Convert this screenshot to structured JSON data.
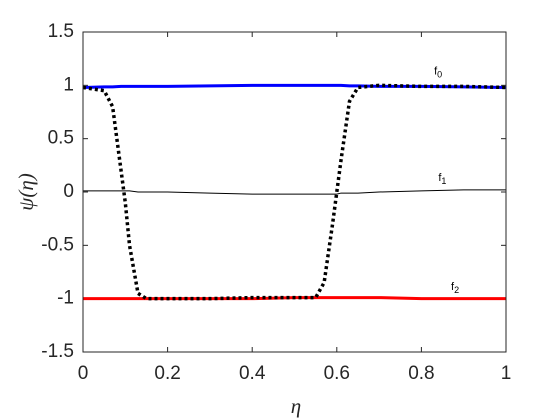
{
  "chart_data": {
    "type": "line",
    "x_label": "η",
    "y_label": "ψ(η)",
    "x": [
      0,
      0.05,
      0.07,
      0.09,
      0.1,
      0.11,
      0.13,
      0.15,
      0.2,
      0.3,
      0.4,
      0.5,
      0.55,
      0.57,
      0.59,
      0.6,
      0.61,
      0.63,
      0.65,
      0.7,
      0.8,
      0.9,
      1
    ],
    "series": [
      {
        "color": "#0000ff",
        "width": 3,
        "dash": false,
        "values": [
          0.98,
          0.985,
          0.985,
          0.99,
          0.99,
          0.99,
          0.99,
          0.99,
          0.99,
          0.995,
          1,
          1,
          1,
          1,
          1,
          1,
          1,
          0.995,
          0.995,
          0.99,
          0.99,
          0.985,
          0.98
        ]
      },
      {
        "color": "#000000",
        "width": 1,
        "dash": false,
        "values": [
          0.01,
          0.01,
          0.01,
          0.01,
          0.01,
          0.01,
          0,
          0,
          0,
          -0.01,
          -0.02,
          -0.02,
          -0.02,
          -0.02,
          -0.02,
          -0.02,
          -0.01,
          -0.01,
          -0.01,
          0,
          0.01,
          0.02,
          0.02
        ]
      },
      {
        "color": "#ff0000",
        "width": 3,
        "dash": false,
        "values": [
          -1,
          -1,
          -1,
          -1,
          -1,
          -1,
          -1,
          -1,
          -1,
          -1,
          -1,
          -0.99,
          -0.99,
          -0.99,
          -0.99,
          -0.99,
          -0.99,
          -0.99,
          -0.99,
          -0.99,
          -1,
          -1,
          -1
        ]
      },
      {
        "color": "#000000",
        "width": 3.5,
        "dash": true,
        "values": [
          0.98,
          0.95,
          0.8,
          0.2,
          -0.1,
          -0.5,
          -0.95,
          -1,
          -1,
          -1,
          -0.99,
          -0.99,
          -0.99,
          -0.85,
          -0.3,
          0,
          0.3,
          0.85,
          0.98,
          1,
          0.99,
          0.99,
          0.98
        ]
      }
    ],
    "annotations": [
      {
        "text": "f",
        "sub": "0",
        "x": 0.83,
        "y": 1.13
      },
      {
        "text": "f",
        "sub": "1",
        "x": 0.84,
        "y": 0.13
      },
      {
        "text": "f",
        "sub": "2",
        "x": 0.87,
        "y": -0.89
      }
    ],
    "xlim": [
      0,
      1
    ],
    "xticks": [
      0,
      0.2,
      0.4,
      0.6,
      0.8,
      1
    ],
    "ylim": [
      -1.5,
      1.5
    ],
    "yticks": [
      -1.5,
      -1,
      -0.5,
      0,
      0.5,
      1,
      1.5
    ]
  }
}
